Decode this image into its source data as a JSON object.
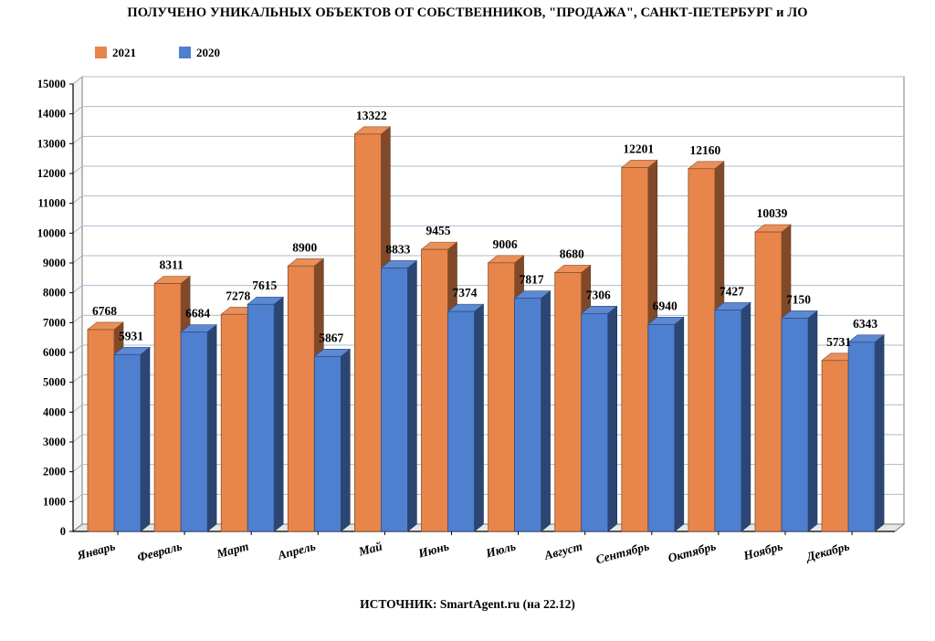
{
  "chart_data": {
    "type": "bar",
    "title": "ПОЛУЧЕНО УНИКАЛЬНЫХ ОБЪЕКТОВ ОТ СОБСТВЕННИКОВ, \"ПРОДАЖА\", САНКТ-ПЕТЕРБУРГ и ЛО",
    "categories": [
      "Январь",
      "Февраль",
      "Март",
      "Апрель",
      "Май",
      "Июнь",
      "Июль",
      "Август",
      "Сентябрь",
      "Октябрь",
      "Ноябрь",
      "Декабрь"
    ],
    "series": [
      {
        "name": "2021",
        "color": "#E8854A",
        "values": [
          6768,
          8311,
          7278,
          8900,
          13322,
          9455,
          9006,
          8680,
          12201,
          12160,
          10039,
          5731
        ]
      },
      {
        "name": "2020",
        "color": "#4F7FCF",
        "values": [
          5931,
          6684,
          7615,
          5867,
          8833,
          7374,
          7817,
          7306,
          6940,
          7427,
          7150,
          6343
        ]
      }
    ],
    "ylim": [
      0,
      15000
    ],
    "ytick_step": 1000,
    "yticks": [
      "0",
      "1000",
      "2000",
      "3000",
      "4000",
      "5000",
      "6000",
      "7000",
      "8000",
      "9000",
      "10000",
      "11000",
      "12000",
      "13000",
      "14000",
      "15000"
    ],
    "xlabel": "",
    "ylabel": "",
    "legend_position": "top-left",
    "grid": true
  },
  "source_note": "ИСТОЧНИК: SmartAgent.ru (на 22.12)"
}
